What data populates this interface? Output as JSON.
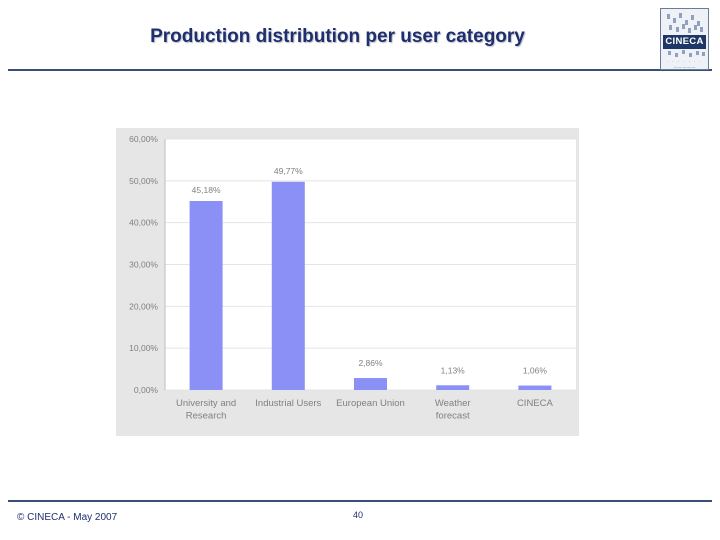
{
  "slide": {
    "title": "Production distribution per user category",
    "logo_text": "CINECA"
  },
  "footer": {
    "copyright": "© CINECA - May  2007",
    "page_number": "40"
  },
  "colors": {
    "bar": "#8a90f5",
    "panel": "#e6e6e6",
    "plot": "#ffffff",
    "title": "#1f2f6e",
    "rule": "#3b4e78"
  },
  "chart_data": {
    "type": "bar",
    "title": "",
    "xlabel": "",
    "ylabel": "",
    "categories": [
      "University and Research",
      "Industrial Users",
      "European Union",
      "Weather forecast",
      "CINECA"
    ],
    "category_lines": [
      [
        "University and",
        "Research"
      ],
      [
        "Industrial Users"
      ],
      [
        "European Union"
      ],
      [
        "Weather",
        "forecast"
      ],
      [
        "CINECA"
      ]
    ],
    "values": [
      45.18,
      49.77,
      2.86,
      1.13,
      1.06
    ],
    "data_labels": [
      "45,18%",
      "49,77%",
      "2,86%",
      "1,13%",
      "1,06%"
    ],
    "ylim": [
      0,
      60
    ],
    "yticks": [
      0,
      10,
      20,
      30,
      40,
      50,
      60
    ],
    "ytick_labels": [
      "0,00%",
      "10,00%",
      "20,00%",
      "30,00%",
      "40,00%",
      "50,00%",
      "60,00%"
    ],
    "grid": true,
    "legend": "none"
  }
}
